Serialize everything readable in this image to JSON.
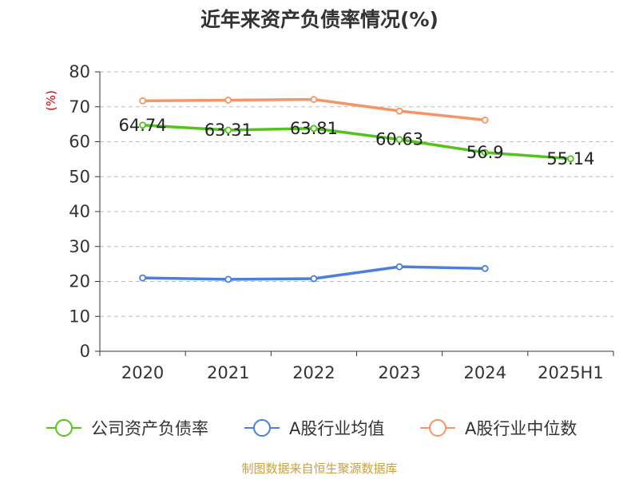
{
  "title": "近年来资产负债率情况(%)",
  "unit_label": "(%)",
  "source": "制图数据来自恒生聚源数据库",
  "colors": {
    "unit": "#cc0000",
    "source": "#c8a040",
    "axis": "#333333",
    "grid": "#bbbbbb"
  },
  "chart_data": {
    "type": "line",
    "title": "近年来资产负债率情况(%)",
    "xlabel": "",
    "ylabel": "(%)",
    "categories": [
      "2020",
      "2021",
      "2022",
      "2023",
      "2024",
      "2025H1"
    ],
    "ylim": [
      0,
      80
    ],
    "yticks": [
      0,
      10,
      20,
      30,
      40,
      50,
      60,
      70,
      80
    ],
    "grid": true,
    "legend_position": "bottom",
    "series": [
      {
        "name": "公司资产负债率",
        "color": "#52c41a",
        "values": [
          64.74,
          63.31,
          63.81,
          60.63,
          56.9,
          55.14
        ],
        "labels": [
          "64.74",
          "63.31",
          "63.81",
          "60.63",
          "56.9",
          "55.14"
        ]
      },
      {
        "name": "A股行业均值",
        "color": "#4a7fdc",
        "values": [
          21.0,
          20.6,
          20.8,
          24.2,
          23.7,
          null
        ]
      },
      {
        "name": "A股行业中位数",
        "color": "#f59563",
        "values": [
          71.7,
          71.9,
          72.1,
          68.8,
          66.2,
          null
        ]
      }
    ]
  }
}
